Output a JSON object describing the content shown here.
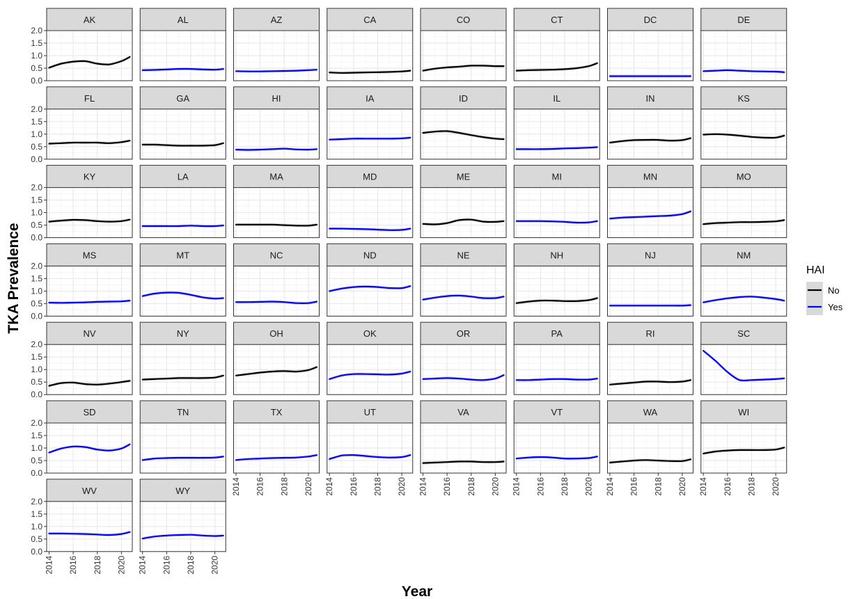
{
  "chart_data": {
    "type": "line",
    "title": "",
    "xlabel": "Year",
    "ylabel": "TKA Prevalence",
    "xlim": [
      2013.8,
      2020.9
    ],
    "ylim": [
      0,
      2.0
    ],
    "x_ticks": [
      "2014",
      "2016",
      "2018",
      "2020"
    ],
    "y_ticks": [
      "0.0",
      "0.5",
      "1.0",
      "1.5",
      "2.0"
    ],
    "legend": {
      "title": "HAI",
      "position": "right",
      "entries": [
        {
          "label": "No",
          "color": "#000000"
        },
        {
          "label": "Yes",
          "color": "#0000ff"
        }
      ]
    },
    "band_color": "#bebebe",
    "x": [
      2014,
      2015,
      2016,
      2017,
      2018,
      2019,
      2020,
      2020.7
    ],
    "panels": [
      {
        "state": "AK",
        "hai": "No",
        "values": [
          0.52,
          0.68,
          0.76,
          0.78,
          0.68,
          0.65,
          0.78,
          0.95
        ]
      },
      {
        "state": "AL",
        "hai": "Yes",
        "values": [
          0.42,
          0.43,
          0.45,
          0.47,
          0.47,
          0.45,
          0.44,
          0.47
        ]
      },
      {
        "state": "AZ",
        "hai": "Yes",
        "values": [
          0.38,
          0.37,
          0.37,
          0.38,
          0.39,
          0.4,
          0.42,
          0.44
        ]
      },
      {
        "state": "CA",
        "hai": "No",
        "values": [
          0.33,
          0.31,
          0.32,
          0.33,
          0.34,
          0.35,
          0.37,
          0.4
        ]
      },
      {
        "state": "CO",
        "hai": "No",
        "values": [
          0.4,
          0.48,
          0.53,
          0.56,
          0.6,
          0.6,
          0.58,
          0.58
        ]
      },
      {
        "state": "CT",
        "hai": "No",
        "values": [
          0.4,
          0.42,
          0.43,
          0.44,
          0.46,
          0.5,
          0.58,
          0.7
        ]
      },
      {
        "state": "DC",
        "hai": "Yes",
        "values": [
          0.18,
          0.18,
          0.18,
          0.18,
          0.18,
          0.18,
          0.18,
          0.18
        ]
      },
      {
        "state": "DE",
        "hai": "Yes",
        "values": [
          0.38,
          0.4,
          0.42,
          0.4,
          0.38,
          0.37,
          0.36,
          0.34
        ]
      },
      {
        "state": "FL",
        "hai": "No",
        "values": [
          0.62,
          0.64,
          0.66,
          0.66,
          0.66,
          0.64,
          0.68,
          0.74
        ]
      },
      {
        "state": "GA",
        "hai": "No",
        "values": [
          0.58,
          0.58,
          0.56,
          0.54,
          0.54,
          0.54,
          0.56,
          0.64
        ]
      },
      {
        "state": "HI",
        "hai": "Yes",
        "values": [
          0.38,
          0.37,
          0.38,
          0.4,
          0.42,
          0.39,
          0.38,
          0.4
        ]
      },
      {
        "state": "IA",
        "hai": "Yes",
        "values": [
          0.78,
          0.8,
          0.82,
          0.82,
          0.82,
          0.82,
          0.83,
          0.86
        ]
      },
      {
        "state": "ID",
        "hai": "No",
        "values": [
          1.05,
          1.1,
          1.12,
          1.05,
          0.96,
          0.88,
          0.82,
          0.8
        ]
      },
      {
        "state": "IL",
        "hai": "Yes",
        "values": [
          0.4,
          0.4,
          0.4,
          0.41,
          0.43,
          0.44,
          0.46,
          0.48
        ]
      },
      {
        "state": "IN",
        "hai": "No",
        "values": [
          0.66,
          0.72,
          0.76,
          0.77,
          0.77,
          0.74,
          0.76,
          0.84
        ]
      },
      {
        "state": "KS",
        "hai": "No",
        "values": [
          0.98,
          1.0,
          0.98,
          0.94,
          0.89,
          0.86,
          0.86,
          0.94
        ]
      },
      {
        "state": "KY",
        "hai": "No",
        "values": [
          0.64,
          0.68,
          0.71,
          0.7,
          0.66,
          0.64,
          0.66,
          0.72
        ]
      },
      {
        "state": "LA",
        "hai": "Yes",
        "values": [
          0.46,
          0.46,
          0.46,
          0.46,
          0.48,
          0.46,
          0.46,
          0.49
        ]
      },
      {
        "state": "MA",
        "hai": "No",
        "values": [
          0.52,
          0.52,
          0.52,
          0.52,
          0.5,
          0.48,
          0.48,
          0.52
        ]
      },
      {
        "state": "MD",
        "hai": "Yes",
        "values": [
          0.36,
          0.36,
          0.35,
          0.34,
          0.32,
          0.3,
          0.31,
          0.36
        ]
      },
      {
        "state": "ME",
        "hai": "No",
        "values": [
          0.55,
          0.53,
          0.58,
          0.7,
          0.72,
          0.64,
          0.63,
          0.66
        ]
      },
      {
        "state": "MI",
        "hai": "Yes",
        "values": [
          0.66,
          0.66,
          0.66,
          0.65,
          0.63,
          0.6,
          0.61,
          0.66
        ]
      },
      {
        "state": "MN",
        "hai": "Yes",
        "values": [
          0.76,
          0.8,
          0.82,
          0.84,
          0.86,
          0.88,
          0.94,
          1.05
        ]
      },
      {
        "state": "MO",
        "hai": "No",
        "values": [
          0.54,
          0.58,
          0.6,
          0.62,
          0.62,
          0.63,
          0.65,
          0.7
        ]
      },
      {
        "state": "MS",
        "hai": "Yes",
        "values": [
          0.54,
          0.53,
          0.54,
          0.55,
          0.57,
          0.58,
          0.59,
          0.62
        ]
      },
      {
        "state": "MT",
        "hai": "Yes",
        "values": [
          0.8,
          0.9,
          0.94,
          0.93,
          0.85,
          0.75,
          0.7,
          0.72
        ]
      },
      {
        "state": "NC",
        "hai": "Yes",
        "values": [
          0.56,
          0.56,
          0.57,
          0.58,
          0.56,
          0.52,
          0.52,
          0.58
        ]
      },
      {
        "state": "ND",
        "hai": "Yes",
        "values": [
          1.0,
          1.1,
          1.16,
          1.18,
          1.16,
          1.12,
          1.12,
          1.2
        ]
      },
      {
        "state": "NE",
        "hai": "Yes",
        "values": [
          0.66,
          0.74,
          0.8,
          0.82,
          0.78,
          0.72,
          0.72,
          0.78
        ]
      },
      {
        "state": "NH",
        "hai": "No",
        "values": [
          0.52,
          0.58,
          0.62,
          0.62,
          0.6,
          0.6,
          0.64,
          0.72
        ]
      },
      {
        "state": "NJ",
        "hai": "Yes",
        "values": [
          0.42,
          0.42,
          0.42,
          0.42,
          0.42,
          0.42,
          0.42,
          0.44
        ]
      },
      {
        "state": "NM",
        "hai": "Yes",
        "values": [
          0.55,
          0.64,
          0.71,
          0.76,
          0.78,
          0.74,
          0.68,
          0.62
        ]
      },
      {
        "state": "NV",
        "hai": "No",
        "values": [
          0.35,
          0.46,
          0.48,
          0.42,
          0.4,
          0.44,
          0.5,
          0.55
        ]
      },
      {
        "state": "NY",
        "hai": "No",
        "values": [
          0.6,
          0.62,
          0.64,
          0.66,
          0.66,
          0.66,
          0.68,
          0.76
        ]
      },
      {
        "state": "OH",
        "hai": "No",
        "values": [
          0.76,
          0.82,
          0.88,
          0.92,
          0.94,
          0.92,
          0.98,
          1.1
        ]
      },
      {
        "state": "OK",
        "hai": "Yes",
        "values": [
          0.62,
          0.76,
          0.82,
          0.82,
          0.81,
          0.8,
          0.84,
          0.92
        ]
      },
      {
        "state": "OR",
        "hai": "Yes",
        "values": [
          0.62,
          0.64,
          0.66,
          0.64,
          0.6,
          0.58,
          0.64,
          0.78
        ]
      },
      {
        "state": "PA",
        "hai": "Yes",
        "values": [
          0.58,
          0.58,
          0.6,
          0.62,
          0.62,
          0.6,
          0.6,
          0.64
        ]
      },
      {
        "state": "RI",
        "hai": "No",
        "values": [
          0.4,
          0.44,
          0.48,
          0.52,
          0.52,
          0.5,
          0.52,
          0.58
        ]
      },
      {
        "state": "SC",
        "hai": "Yes",
        "values": [
          1.75,
          1.35,
          0.9,
          0.58,
          0.58,
          0.6,
          0.62,
          0.65
        ]
      },
      {
        "state": "SD",
        "hai": "Yes",
        "values": [
          0.82,
          0.98,
          1.06,
          1.04,
          0.94,
          0.9,
          0.98,
          1.15
        ]
      },
      {
        "state": "TN",
        "hai": "Yes",
        "values": [
          0.52,
          0.58,
          0.6,
          0.61,
          0.61,
          0.61,
          0.62,
          0.66
        ]
      },
      {
        "state": "TX",
        "hai": "Yes",
        "values": [
          0.52,
          0.56,
          0.58,
          0.6,
          0.61,
          0.62,
          0.66,
          0.72
        ]
      },
      {
        "state": "UT",
        "hai": "Yes",
        "values": [
          0.56,
          0.7,
          0.72,
          0.68,
          0.64,
          0.62,
          0.64,
          0.72
        ]
      },
      {
        "state": "VA",
        "hai": "No",
        "values": [
          0.4,
          0.42,
          0.44,
          0.46,
          0.46,
          0.44,
          0.44,
          0.46
        ]
      },
      {
        "state": "VT",
        "hai": "Yes",
        "values": [
          0.58,
          0.62,
          0.64,
          0.62,
          0.58,
          0.58,
          0.6,
          0.66
        ]
      },
      {
        "state": "WA",
        "hai": "No",
        "values": [
          0.42,
          0.46,
          0.5,
          0.52,
          0.5,
          0.48,
          0.48,
          0.55
        ]
      },
      {
        "state": "WI",
        "hai": "No",
        "values": [
          0.78,
          0.86,
          0.9,
          0.92,
          0.92,
          0.92,
          0.94,
          1.02
        ]
      },
      {
        "state": "WV",
        "hai": "Yes",
        "values": [
          0.72,
          0.72,
          0.71,
          0.7,
          0.68,
          0.66,
          0.7,
          0.78
        ]
      },
      {
        "state": "WY",
        "hai": "Yes",
        "values": [
          0.52,
          0.6,
          0.64,
          0.66,
          0.67,
          0.64,
          0.62,
          0.64
        ]
      }
    ]
  }
}
